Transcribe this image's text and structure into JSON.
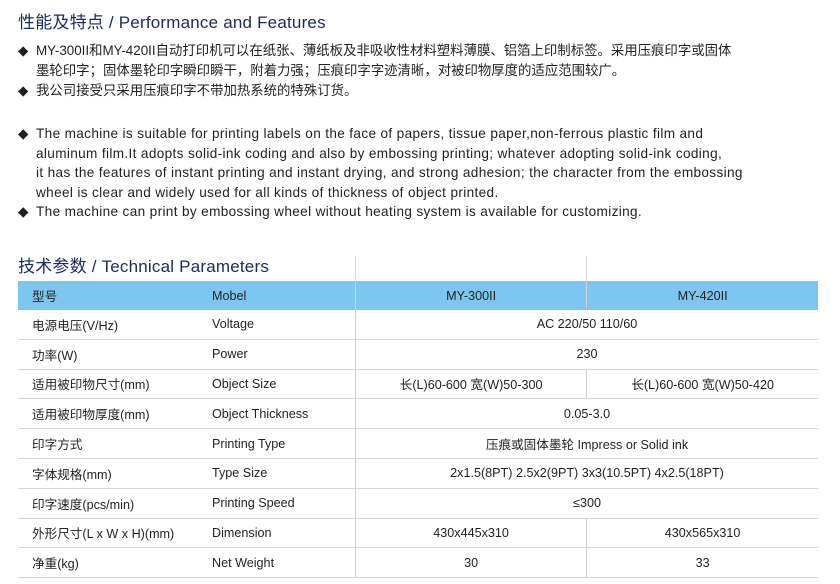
{
  "features": {
    "title": "性能及特点 / Performance and Features",
    "bullet_icon": "diamond-bullet",
    "cn_items": [
      [
        "MY-300II和MY-420II自动打印机可以在纸张、薄纸板及非吸收性材料塑料薄膜、铝箔上印制标签。采用压痕印字或固体",
        "墨轮印字；固体墨轮印字瞬印瞬干，附着力强；压痕印字字迹清晰，对被印物厚度的适应范围较广。"
      ],
      [
        "我公司接受只采用压痕印字不带加热系统的特殊订货。"
      ]
    ],
    "en_items": [
      [
        "The machine is suitable for printing labels on the face of papers, tissue paper,non-ferrous plastic film and",
        "aluminum film.It adopts solid-ink coding and also by embossing printing; whatever adopting solid-ink coding,",
        "it has the features of instant printing and instant drying, and strong adhesion; the character from the embossing",
        "wheel is clear and widely used for all kinds of thickness of object printed."
      ],
      [
        "The machine can print by embossing wheel without heating system is available for customizing."
      ]
    ]
  },
  "parameters": {
    "title": "技术参数 / Technical Parameters",
    "header_color": "#7cc6ef",
    "header": [
      "型号",
      "Mobel",
      "MY-300II",
      "MY-420II"
    ],
    "rows": [
      {
        "cn": "电源电压(V/Hz)",
        "en": "Voltage",
        "value": "AC 220/50  110/60"
      },
      {
        "cn": "功率(W)",
        "en": "Power",
        "value": "230"
      },
      {
        "cn": "适用被印物尺寸(mm)",
        "en": "Object Size",
        "a": "长(L)60-600 宽(W)50-300",
        "b": "长(L)60-600 宽(W)50-420"
      },
      {
        "cn": "适用被印物厚度(mm)",
        "en": "Object Thickness",
        "value": "0.05-3.0"
      },
      {
        "cn": "印字方式",
        "en": "Printing Type",
        "value": "压痕或固体墨轮 Impress or Solid ink"
      },
      {
        "cn": "字体规格(mm)",
        "en": "Type Size",
        "value": "2x1.5(8PT) 2.5x2(9PT) 3x3(10.5PT) 4x2.5(18PT)"
      },
      {
        "cn": "印字速度(pcs/min)",
        "en": "Printing Speed",
        "value": "≤300"
      },
      {
        "cn": "外形尺寸(L x W x H)(mm)",
        "en": "Dimension",
        "a": "430x445x310",
        "b": "430x565x310"
      },
      {
        "cn": "净重(kg)",
        "en": "Net Weight",
        "a": "30",
        "b": "33"
      }
    ]
  }
}
